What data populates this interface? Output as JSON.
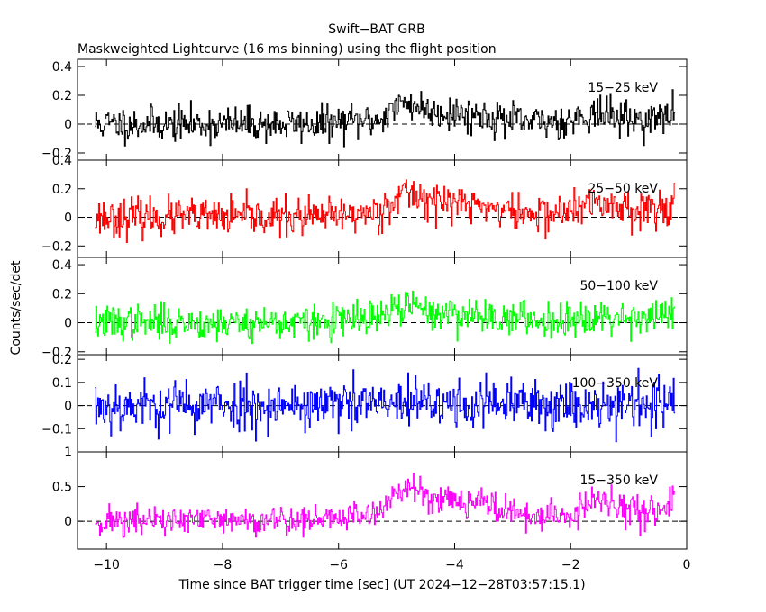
{
  "chart_data": {
    "type": "line",
    "title": "Swift−BAT GRB",
    "subtitle": "Maskweighted Lightcurve (16 ms binning) using the flight position",
    "xlabel": "Time since BAT trigger time [sec] (UT 2024−12−28T03:57:15.1)",
    "ylabel": "Counts/sec/det",
    "xlim": [
      -10.5,
      0
    ],
    "x_ticks": [
      {
        "value": -10,
        "label": "−10"
      },
      {
        "value": -8,
        "label": "−8"
      },
      {
        "value": -6,
        "label": "−6"
      },
      {
        "value": -4,
        "label": "−4"
      },
      {
        "value": -2,
        "label": "−2"
      },
      {
        "value": 0,
        "label": "0"
      }
    ],
    "bin_size_sec": 0.016,
    "data_range": [
      -10.2,
      -0.2
    ],
    "panels": [
      {
        "name": "15−25 keV",
        "label": "15−25 keV",
        "color": "#000000",
        "ylim": [
          -0.25,
          0.45
        ],
        "y_ticks": [
          {
            "value": 0.4,
            "label": "0.4"
          },
          {
            "value": 0.2,
            "label": "0.2"
          },
          {
            "value": 0,
            "label": "0"
          },
          {
            "value": -0.2,
            "label": "−0.2"
          }
        ],
        "noise": 0.06,
        "seed": 11,
        "profile": [
          [
            -10.2,
            0.0
          ],
          [
            -6.3,
            0.0
          ],
          [
            -5.3,
            0.03
          ],
          [
            -5.1,
            0.1
          ],
          [
            -4.8,
            0.15
          ],
          [
            -4.4,
            0.09
          ],
          [
            -3.5,
            0.06
          ],
          [
            -2.8,
            0.01
          ],
          [
            -2.3,
            0.02
          ],
          [
            -2.0,
            0.03
          ],
          [
            -1.6,
            0.08
          ],
          [
            -1.2,
            0.05
          ],
          [
            -0.8,
            0.03
          ],
          [
            -0.4,
            0.04
          ],
          [
            -0.2,
            0.08
          ]
        ]
      },
      {
        "name": "25−50 keV",
        "label": "25−50 keV",
        "color": "#ff0000",
        "ylim": [
          -0.28,
          0.4
        ],
        "y_ticks": [
          {
            "value": 0.4,
            "label": "0.4"
          },
          {
            "value": 0.2,
            "label": "0.2"
          },
          {
            "value": 0,
            "label": "0"
          },
          {
            "value": -0.2,
            "label": "−0.2"
          }
        ],
        "noise": 0.065,
        "seed": 23,
        "profile": [
          [
            -10.2,
            0.0
          ],
          [
            -6.3,
            0.0
          ],
          [
            -5.3,
            0.04
          ],
          [
            -5.1,
            0.12
          ],
          [
            -4.8,
            0.17
          ],
          [
            -4.4,
            0.12
          ],
          [
            -3.5,
            0.08
          ],
          [
            -2.8,
            0.02
          ],
          [
            -2.3,
            0.03
          ],
          [
            -2.0,
            0.04
          ],
          [
            -1.6,
            0.1
          ],
          [
            -1.2,
            0.08
          ],
          [
            -0.8,
            0.06
          ],
          [
            -0.4,
            0.07
          ],
          [
            -0.2,
            0.12
          ]
        ]
      },
      {
        "name": "50−100 keV",
        "label": "50−100 keV",
        "color": "#00ff00",
        "ylim": [
          -0.22,
          0.45
        ],
        "y_ticks": [
          {
            "value": 0.4,
            "label": "0.4"
          },
          {
            "value": 0.2,
            "label": "0.2"
          },
          {
            "value": 0,
            "label": "0"
          },
          {
            "value": -0.2,
            "label": "−0.2"
          }
        ],
        "noise": 0.06,
        "seed": 37,
        "profile": [
          [
            -10.2,
            0.0
          ],
          [
            -6.3,
            0.0
          ],
          [
            -5.3,
            0.03
          ],
          [
            -5.1,
            0.08
          ],
          [
            -4.8,
            0.12
          ],
          [
            -4.4,
            0.07
          ],
          [
            -3.5,
            0.05
          ],
          [
            -2.8,
            0.02
          ],
          [
            -2.3,
            0.02
          ],
          [
            -2.0,
            0.03
          ],
          [
            -1.6,
            0.05
          ],
          [
            -1.2,
            0.04
          ],
          [
            -0.8,
            0.04
          ],
          [
            -0.4,
            0.05
          ],
          [
            -0.2,
            0.08
          ]
        ]
      },
      {
        "name": "100−350 keV",
        "label": "100−350 keV",
        "color": "#0000ff",
        "ylim": [
          -0.2,
          0.22
        ],
        "y_ticks": [
          {
            "value": 0.2,
            "label": "0.2"
          },
          {
            "value": 0.1,
            "label": "0.1"
          },
          {
            "value": 0,
            "label": "0"
          },
          {
            "value": -0.1,
            "label": "−0.1"
          }
        ],
        "noise": 0.055,
        "seed": 53,
        "profile": [
          [
            -10.2,
            0.0
          ],
          [
            -0.2,
            0.01
          ]
        ]
      },
      {
        "name": "15−350 keV",
        "label": "15−350 keV",
        "color": "#ff00ff",
        "ylim": [
          -0.4,
          1.0
        ],
        "y_ticks": [
          {
            "value": 1,
            "label": "1"
          },
          {
            "value": 0.5,
            "label": "0.5"
          },
          {
            "value": 0,
            "label": "0"
          }
        ],
        "noise": 0.11,
        "seed": 71,
        "profile": [
          [
            -10.2,
            0.0
          ],
          [
            -6.3,
            0.02
          ],
          [
            -5.3,
            0.12
          ],
          [
            -5.1,
            0.35
          ],
          [
            -4.8,
            0.5
          ],
          [
            -4.4,
            0.35
          ],
          [
            -3.5,
            0.28
          ],
          [
            -2.8,
            0.06
          ],
          [
            -2.3,
            0.08
          ],
          [
            -2.0,
            0.08
          ],
          [
            -1.6,
            0.3
          ],
          [
            -1.2,
            0.2
          ],
          [
            -0.8,
            0.14
          ],
          [
            -0.4,
            0.16
          ],
          [
            -0.2,
            0.45
          ]
        ]
      }
    ]
  }
}
